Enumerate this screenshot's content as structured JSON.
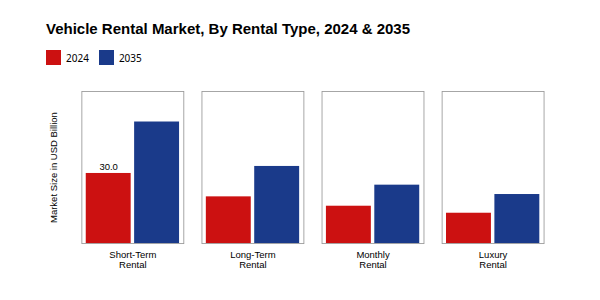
{
  "chart_data": {
    "type": "bar",
    "title": "Vehicle Rental Market, By Rental Type, 2024 & 2035",
    "ylabel": "Market Size in USD Billion",
    "categories": [
      "Short-Term\nRental",
      "Long-Term\nRental",
      "Monthly\nRental",
      "Luxury\nRental"
    ],
    "series": [
      {
        "name": "2024",
        "color": "#cc1111",
        "values": [
          30.0,
          20.0,
          16.0,
          13.0
        ]
      },
      {
        "name": "2035",
        "color": "#1a3a8a",
        "values": [
          52.0,
          33.0,
          25.0,
          21.0
        ]
      }
    ],
    "annotations": [
      {
        "text": "30.0",
        "category": "Short-Term\nRental",
        "series": "2024"
      }
    ],
    "ylim": [
      0,
      65
    ],
    "tick_labels": "x",
    "grid": false,
    "legend": "top"
  }
}
